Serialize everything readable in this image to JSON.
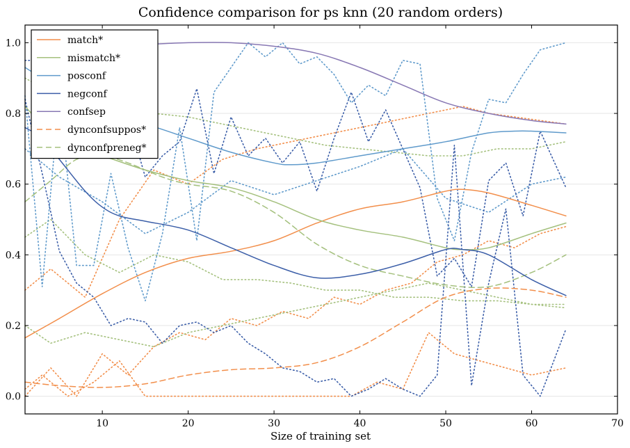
{
  "chart_data": {
    "type": "line",
    "title": "Confidence comparison for ps knn (20 random orders)",
    "xlabel": "Size of training set",
    "ylabel": "",
    "xlim": [
      1,
      70
    ],
    "ylim": [
      -0.05,
      1.05
    ],
    "xticks": [
      10,
      20,
      30,
      40,
      50,
      60,
      70
    ],
    "yticks": [
      0.0,
      0.2,
      0.4,
      0.6,
      0.8,
      1.0
    ],
    "ytick_labels": [
      "0.0",
      "0.2",
      "0.4",
      "0.6",
      "0.8",
      "1.0"
    ],
    "grid": "horizontal",
    "legend_position": "top-left",
    "series": [
      {
        "name": "match*",
        "color": "#f28e4a",
        "dash": "solid",
        "x": [
          1,
          5,
          10,
          15,
          20,
          25,
          30,
          35,
          40,
          45,
          50,
          52,
          55,
          60,
          64
        ],
        "values": [
          0.165,
          0.22,
          0.29,
          0.35,
          0.39,
          0.41,
          0.44,
          0.49,
          0.53,
          0.55,
          0.58,
          0.585,
          0.575,
          0.54,
          0.51
        ]
      },
      {
        "name": "mismatch*",
        "color": "#a4c07d",
        "dash": "solid",
        "x": [
          1,
          5,
          8,
          10,
          15,
          20,
          25,
          30,
          35,
          40,
          45,
          50,
          52,
          55,
          60,
          64
        ],
        "values": [
          0.82,
          0.72,
          0.69,
          0.68,
          0.64,
          0.61,
          0.59,
          0.55,
          0.5,
          0.47,
          0.45,
          0.42,
          0.415,
          0.42,
          0.46,
          0.49
        ]
      },
      {
        "name": "posconf",
        "color": "#5f9acb",
        "dash": "solid",
        "x": [
          1,
          5,
          10,
          15,
          20,
          25,
          30,
          32,
          35,
          40,
          45,
          50,
          55,
          58,
          60,
          64
        ],
        "values": [
          0.93,
          0.87,
          0.8,
          0.77,
          0.73,
          0.69,
          0.66,
          0.655,
          0.66,
          0.68,
          0.7,
          0.72,
          0.745,
          0.75,
          0.75,
          0.745
        ]
      },
      {
        "name": "negconf",
        "color": "#3b5ea8",
        "dash": "solid",
        "x": [
          1,
          3,
          5,
          8,
          10,
          12,
          15,
          20,
          25,
          30,
          35,
          40,
          45,
          50,
          52,
          55,
          60,
          64
        ],
        "values": [
          0.76,
          0.73,
          0.67,
          0.58,
          0.535,
          0.51,
          0.495,
          0.47,
          0.42,
          0.37,
          0.335,
          0.345,
          0.375,
          0.415,
          0.415,
          0.4,
          0.33,
          0.285
        ]
      },
      {
        "name": "confsep",
        "color": "#8777b3",
        "dash": "solid",
        "x": [
          15,
          20,
          25,
          30,
          35,
          40,
          45,
          50,
          55,
          60,
          64
        ],
        "values": [
          0.995,
          1.0,
          1.0,
          0.99,
          0.97,
          0.93,
          0.88,
          0.83,
          0.8,
          0.78,
          0.77
        ]
      },
      {
        "name": "dynconfsuppos*",
        "color": "#f28e4a",
        "dash": "dashed",
        "x": [
          1,
          5,
          10,
          15,
          20,
          25,
          30,
          35,
          40,
          45,
          50,
          55,
          60,
          64
        ],
        "values": [
          0.04,
          0.03,
          0.025,
          0.035,
          0.06,
          0.075,
          0.08,
          0.095,
          0.14,
          0.21,
          0.28,
          0.305,
          0.3,
          0.28
        ]
      },
      {
        "name": "dynconfpreneg*",
        "color": "#a4c07d",
        "dash": "dashed",
        "x": [
          1,
          4,
          7,
          10,
          13,
          17,
          20,
          25,
          30,
          35,
          40,
          45,
          50,
          55,
          60,
          64
        ],
        "values": [
          0.55,
          0.61,
          0.67,
          0.68,
          0.66,
          0.62,
          0.6,
          0.58,
          0.52,
          0.43,
          0.37,
          0.34,
          0.315,
          0.31,
          0.35,
          0.4
        ]
      },
      {
        "color": "#f28e4a",
        "dash": "dotted",
        "x": [
          1,
          4,
          7,
          10,
          13,
          16,
          19,
          22,
          25,
          28,
          31,
          34,
          37,
          40,
          43,
          46,
          49,
          52,
          55,
          58,
          61,
          64
        ],
        "values": [
          0.0,
          0.08,
          0.0,
          0.12,
          0.06,
          0.14,
          0.18,
          0.16,
          0.22,
          0.2,
          0.24,
          0.22,
          0.28,
          0.26,
          0.3,
          0.32,
          0.38,
          0.4,
          0.44,
          0.42,
          0.46,
          0.48
        ]
      },
      {
        "color": "#f28e4a",
        "dash": "dotted",
        "x": [
          1,
          4,
          8,
          12,
          16,
          20,
          24,
          28,
          32,
          36,
          40,
          44,
          48,
          50,
          52,
          55,
          58,
          61,
          64
        ],
        "values": [
          0.3,
          0.36,
          0.28,
          0.5,
          0.64,
          0.6,
          0.67,
          0.7,
          0.72,
          0.74,
          0.76,
          0.78,
          0.8,
          0.81,
          0.82,
          0.8,
          0.79,
          0.78,
          0.77
        ]
      },
      {
        "color": "#f28e4a",
        "dash": "dotted",
        "x": [
          1,
          3,
          6,
          9,
          12,
          15,
          18,
          21,
          24,
          27,
          30,
          33,
          36,
          39,
          42,
          45,
          48,
          51,
          54,
          57,
          60,
          64
        ],
        "values": [
          0.02,
          0.06,
          0.0,
          0.04,
          0.1,
          0.0,
          0.0,
          0.0,
          0.0,
          0.0,
          0.0,
          0.0,
          0.0,
          0.0,
          0.04,
          0.02,
          0.18,
          0.12,
          0.1,
          0.08,
          0.06,
          0.08
        ]
      },
      {
        "color": "#a4c07d",
        "dash": "dotted",
        "x": [
          1,
          4,
          8,
          12,
          16,
          20,
          24,
          28,
          32,
          36,
          40,
          44,
          48,
          52,
          56,
          60,
          64
        ],
        "values": [
          0.9,
          0.86,
          0.84,
          0.82,
          0.8,
          0.79,
          0.77,
          0.75,
          0.73,
          0.71,
          0.7,
          0.69,
          0.68,
          0.68,
          0.7,
          0.7,
          0.72
        ]
      },
      {
        "color": "#a4c07d",
        "dash": "dotted",
        "x": [
          1,
          4,
          8,
          12,
          16,
          20,
          24,
          28,
          32,
          36,
          40,
          44,
          48,
          52,
          56,
          60,
          64
        ],
        "values": [
          0.45,
          0.5,
          0.4,
          0.35,
          0.4,
          0.38,
          0.33,
          0.33,
          0.32,
          0.3,
          0.3,
          0.28,
          0.28,
          0.27,
          0.27,
          0.26,
          0.26
        ]
      },
      {
        "color": "#a4c07d",
        "dash": "dotted",
        "x": [
          1,
          4,
          8,
          12,
          16,
          20,
          24,
          28,
          32,
          36,
          40,
          44,
          48,
          52,
          56,
          60,
          64
        ],
        "values": [
          0.2,
          0.15,
          0.18,
          0.16,
          0.14,
          0.18,
          0.2,
          0.22,
          0.24,
          0.26,
          0.28,
          0.3,
          0.32,
          0.3,
          0.28,
          0.26,
          0.25
        ]
      },
      {
        "color": "#5f9acb",
        "dash": "dotted",
        "x": [
          1,
          3,
          5,
          7,
          9,
          11,
          13,
          15,
          17,
          19,
          21,
          23,
          25,
          27,
          29,
          31,
          33,
          35,
          37,
          39,
          41,
          43,
          45,
          47,
          49,
          51,
          53,
          55,
          57,
          59,
          61,
          64
        ],
        "values": [
          0.85,
          0.31,
          0.85,
          0.37,
          0.37,
          0.63,
          0.42,
          0.27,
          0.46,
          0.76,
          0.44,
          0.86,
          0.93,
          1.0,
          0.96,
          1.0,
          0.94,
          0.96,
          0.91,
          0.83,
          0.88,
          0.85,
          0.95,
          0.94,
          0.56,
          0.44,
          0.69,
          0.84,
          0.83,
          0.91,
          0.98,
          1.0
        ]
      },
      {
        "color": "#5f9acb",
        "dash": "dotted",
        "x": [
          1,
          5,
          10,
          15,
          20,
          25,
          30,
          35,
          40,
          45,
          50,
          55,
          60,
          64
        ],
        "values": [
          0.7,
          0.62,
          0.55,
          0.46,
          0.52,
          0.61,
          0.57,
          0.61,
          0.65,
          0.7,
          0.56,
          0.52,
          0.6,
          0.62
        ]
      },
      {
        "color": "#3b5ea8",
        "dash": "dotted",
        "x": [
          1,
          3,
          5,
          7,
          9,
          11,
          13,
          15,
          17,
          19,
          21,
          23,
          25,
          27,
          29,
          31,
          33,
          35,
          37,
          39,
          41,
          43,
          45,
          47,
          49,
          51,
          53,
          55,
          57,
          59,
          61,
          64
        ],
        "values": [
          0.84,
          0.63,
          0.41,
          0.32,
          0.28,
          0.2,
          0.22,
          0.21,
          0.15,
          0.2,
          0.21,
          0.18,
          0.2,
          0.15,
          0.12,
          0.08,
          0.07,
          0.04,
          0.05,
          0.0,
          0.02,
          0.05,
          0.02,
          0.0,
          0.06,
          0.71,
          0.03,
          0.32,
          0.53,
          0.06,
          0.0,
          0.19
        ]
      },
      {
        "color": "#3b5ea8",
        "dash": "dotted",
        "x": [
          1,
          3,
          5,
          7,
          9,
          11,
          13,
          15,
          17,
          19,
          21,
          23,
          25,
          27,
          29,
          31,
          33,
          35,
          37,
          39,
          41,
          43,
          45,
          47,
          49,
          51,
          53,
          55,
          57,
          59,
          61,
          64
        ],
        "values": [
          0.95,
          0.95,
          1.0,
          0.72,
          0.88,
          0.77,
          0.79,
          0.62,
          0.68,
          0.72,
          0.87,
          0.63,
          0.79,
          0.68,
          0.73,
          0.66,
          0.72,
          0.58,
          0.73,
          0.86,
          0.72,
          0.81,
          0.7,
          0.59,
          0.34,
          0.39,
          0.31,
          0.61,
          0.66,
          0.51,
          0.75,
          0.59
        ]
      }
    ]
  }
}
